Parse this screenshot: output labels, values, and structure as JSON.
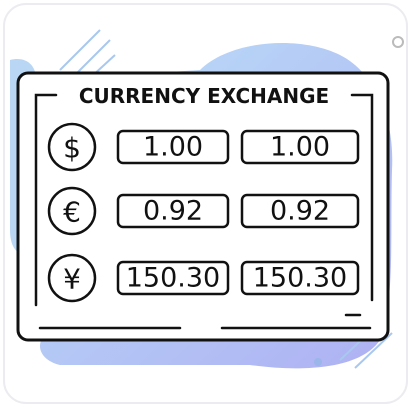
{
  "title": "CURRENCY EXCHANGE",
  "rows": [
    {
      "symbol": "$",
      "values": [
        "1.00",
        "1.00"
      ]
    },
    {
      "symbol": "€",
      "values": [
        "0.92",
        "0.92"
      ]
    },
    {
      "symbol": "¥",
      "values": [
        "150.30",
        "150.30"
      ]
    }
  ]
}
